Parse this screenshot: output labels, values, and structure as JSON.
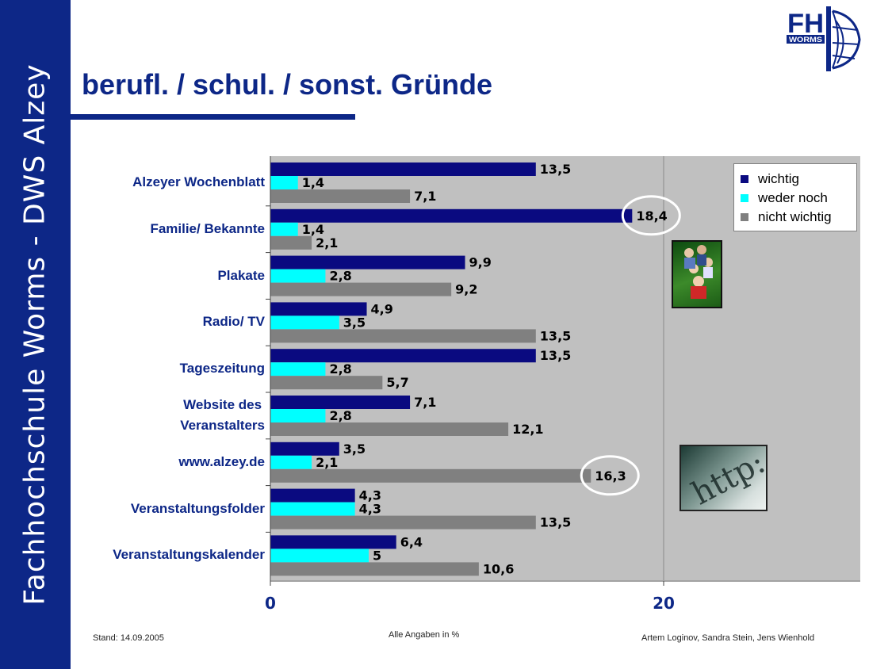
{
  "sidebar": {
    "text": "Fachhochschule Worms - DWS Alzey"
  },
  "title": "berufl. / schul. / sonst. Gründe",
  "logo": {
    "text_main": "FH",
    "text_sub": "WORMS"
  },
  "colors": {
    "brand": "#0d2787",
    "wichtig": "#0a0a80",
    "weder_noch": "#00ffff",
    "nicht_wichtig": "#808080",
    "plot_bg": "#c0c0c0"
  },
  "chart_data": {
    "type": "bar",
    "orientation": "horizontal",
    "categories": [
      "Alzeyer Wochenblatt",
      "Familie/ Bekannte",
      "Plakate",
      "Radio/ TV",
      "Tageszeitung",
      "Website des Veranstalters",
      "www.alzey.de",
      "Veranstaltungsfolder",
      "Veranstaltungskalender"
    ],
    "category_lines": [
      [
        "Alzeyer Wochenblatt"
      ],
      [
        "Familie/ Bekannte"
      ],
      [
        "Plakate"
      ],
      [
        "Radio/ TV"
      ],
      [
        "Tageszeitung"
      ],
      [
        "Website des",
        "Veranstalters"
      ],
      [
        "www.alzey.de"
      ],
      [
        "Veranstaltungsfolder"
      ],
      [
        "Veranstaltungskalender"
      ]
    ],
    "series": [
      {
        "name": "wichtig",
        "values": [
          13.5,
          18.4,
          9.9,
          4.9,
          13.5,
          7.1,
          3.5,
          4.3,
          6.4
        ],
        "labels": [
          "13,5",
          "18,4",
          "9,9",
          "4,9",
          "13,5",
          "7,1",
          "3,5",
          "4,3",
          "6,4"
        ]
      },
      {
        "name": "weder noch",
        "values": [
          1.4,
          1.4,
          2.8,
          3.5,
          2.8,
          2.8,
          2.1,
          4.3,
          5.0
        ],
        "labels": [
          "1,4",
          "1,4",
          "2,8",
          "3,5",
          "2,8",
          "2,8",
          "2,1",
          "4,3",
          "5"
        ]
      },
      {
        "name": "nicht wichtig",
        "values": [
          7.1,
          2.1,
          9.2,
          13.5,
          5.7,
          12.1,
          16.3,
          13.5,
          10.6
        ],
        "labels": [
          "7,1",
          "2,1",
          "9,2",
          "13,5",
          "5,7",
          "12,1",
          "16,3",
          "13,5",
          "10,6"
        ]
      }
    ],
    "xlim": [
      0,
      30
    ],
    "xticks": [
      0,
      20
    ],
    "xtick_labels": [
      "0",
      "20"
    ],
    "grid": true,
    "legend_position": "top-right",
    "highlighted": [
      "18,4",
      "16,3"
    ]
  },
  "footer": {
    "left": "Stand: 14.09.2005",
    "center": "Alle Angaben in %",
    "right": "Artem Loginov, Sandra Stein, Jens Wienhold"
  }
}
